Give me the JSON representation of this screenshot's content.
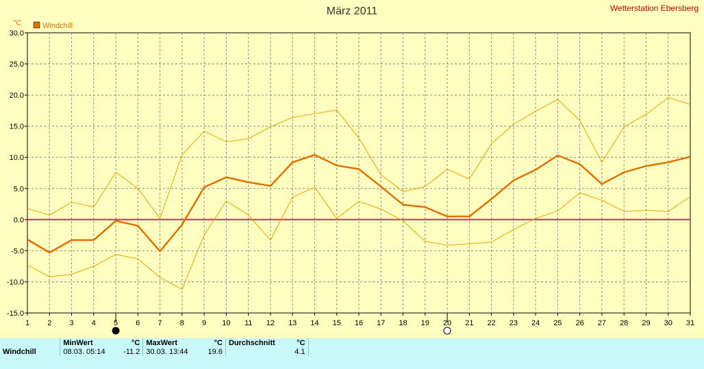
{
  "chart_data": {
    "type": "line",
    "title": "März 2011",
    "station": "Wetterstation Ebersberg",
    "ylabel": "°C",
    "ylim": [
      -15,
      30
    ],
    "yticks": [
      "30.0",
      "25.0",
      "20.0",
      "15.0",
      "10.0",
      "5.0",
      "0.0",
      "-5.0",
      "-10.0",
      "-15.0"
    ],
    "x": [
      1,
      2,
      3,
      4,
      5,
      6,
      7,
      8,
      9,
      10,
      11,
      12,
      13,
      14,
      15,
      16,
      17,
      18,
      19,
      20,
      21,
      22,
      23,
      24,
      25,
      26,
      27,
      28,
      29,
      30,
      31
    ],
    "xticks": [
      "1",
      "2",
      "3",
      "4",
      "5",
      "6",
      "7",
      "8",
      "9",
      "10",
      "11",
      "12",
      "13",
      "14",
      "15",
      "16",
      "17",
      "18",
      "19",
      "20",
      "21",
      "22",
      "23",
      "24",
      "25",
      "26",
      "27",
      "28",
      "29",
      "30",
      "31"
    ],
    "grid": true,
    "legend": "top-left",
    "moon_markers": [
      {
        "day": 5,
        "phase": "new-moon"
      },
      {
        "day": 20,
        "phase": "full-moon"
      }
    ],
    "series": [
      {
        "name": "Windchill",
        "role": "mean",
        "color": "#e07000",
        "values": [
          -3.2,
          -5.3,
          -3.3,
          -3.3,
          -0.2,
          -1.0,
          -5.1,
          -0.8,
          5.2,
          6.8,
          6.0,
          5.4,
          9.2,
          10.4,
          8.7,
          8.1,
          5.3,
          2.4,
          2.0,
          0.5,
          0.5,
          3.3,
          6.3,
          8.0,
          10.3,
          8.9,
          5.7,
          7.6,
          8.6,
          9.2,
          10.1
        ]
      },
      {
        "role": "max",
        "color": "#f0a000",
        "values": [
          1.8,
          0.7,
          2.8,
          2.0,
          7.6,
          5.0,
          0.2,
          10.4,
          14.2,
          12.5,
          13.0,
          14.9,
          16.4,
          17.0,
          17.6,
          13.1,
          7.2,
          4.5,
          5.3,
          8.1,
          6.5,
          12.2,
          15.3,
          17.4,
          19.3,
          15.9,
          9.2,
          14.9,
          16.9,
          19.6,
          18.5
        ]
      },
      {
        "role": "min",
        "color": "#f0a000",
        "values": [
          -7.3,
          -9.2,
          -8.8,
          -7.5,
          -5.6,
          -6.3,
          -9.3,
          -11.2,
          -2.5,
          3.0,
          0.7,
          -3.3,
          3.6,
          5.2,
          0.2,
          2.9,
          1.7,
          -0.2,
          -3.5,
          -4.1,
          -3.9,
          -3.6,
          -1.6,
          0.2,
          1.4,
          4.3,
          3.1,
          1.3,
          1.5,
          1.3,
          3.7
        ]
      }
    ]
  },
  "colors": {
    "background": "#ffffc0",
    "zero_line": "#e0205a",
    "mean_line": "#e07000",
    "range_line": "#f0a000",
    "title_red": "#d00000",
    "stats_bg": "#c8f8f8"
  },
  "stats": {
    "headers": {
      "min": "MinWert",
      "min_unit": "°C",
      "max": "MaxWert",
      "max_unit": "°C",
      "avg": "Durchschnitt",
      "avg_unit": "°C"
    },
    "rows": [
      {
        "label": "Windchill",
        "min_time": "08.03.  05:14",
        "min_value": "-11.2",
        "max_time": "30.03.  13:44",
        "max_value": "19.6",
        "avg_value": "4.1"
      }
    ]
  }
}
